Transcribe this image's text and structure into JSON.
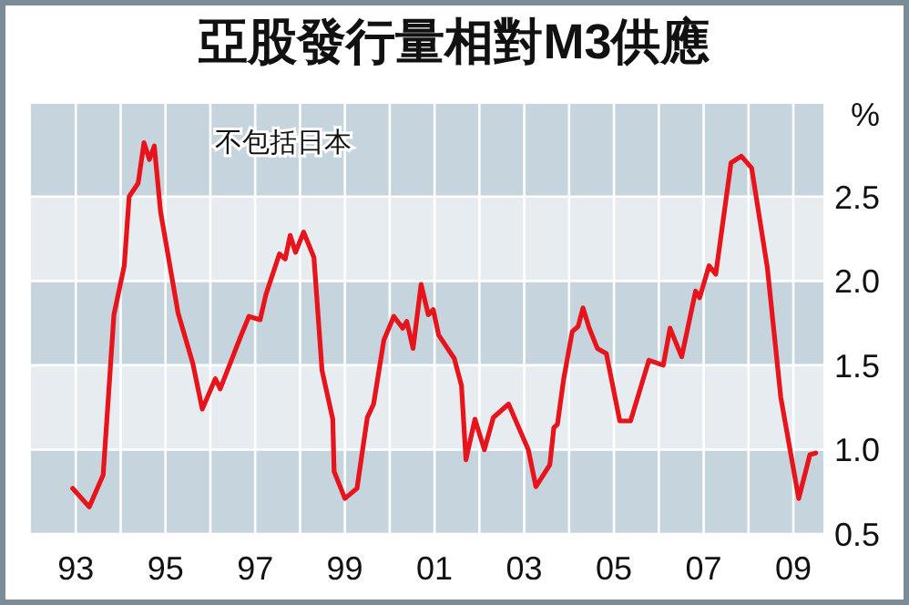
{
  "chart_data": {
    "type": "line",
    "title": "亞股發行量相對M3供應",
    "ylabel": "%",
    "annotations": [
      "不包括日本"
    ],
    "x": [
      1992.93,
      1993.3,
      1993.61,
      1993.85,
      1994.08,
      1994.19,
      1994.39,
      1994.52,
      1994.64,
      1994.75,
      1994.89,
      1995.28,
      1995.61,
      1995.82,
      1996.11,
      1996.22,
      1996.66,
      1996.86,
      1997.11,
      1997.24,
      1997.54,
      1997.67,
      1997.78,
      1997.9,
      1998.08,
      1998.31,
      1998.49,
      1998.73,
      1998.76,
      1999.0,
      1999.27,
      1999.5,
      1999.64,
      1999.87,
      2000.09,
      2000.29,
      2000.38,
      2000.52,
      2000.7,
      2000.86,
      2000.97,
      2001.09,
      2001.44,
      2001.6,
      2001.7,
      2001.9,
      2002.11,
      2002.31,
      2002.65,
      2003.09,
      2003.26,
      2003.57,
      2003.66,
      2003.74,
      2003.88,
      2004.07,
      2004.2,
      2004.31,
      2004.45,
      2004.63,
      2004.83,
      2005.13,
      2005.37,
      2005.78,
      2006.1,
      2006.25,
      2006.51,
      2006.82,
      2006.91,
      2007.12,
      2007.27,
      2007.61,
      2007.84,
      2008.07,
      2008.42,
      2008.72,
      2009.12,
      2009.37,
      2009.5
    ],
    "series": [
      {
        "color": "#e8141b",
        "values": [
          0.77,
          0.66,
          0.85,
          1.8,
          2.09,
          2.5,
          2.58,
          2.82,
          2.72,
          2.8,
          2.41,
          1.81,
          1.51,
          1.24,
          1.42,
          1.36,
          1.66,
          1.79,
          1.77,
          1.92,
          2.16,
          2.13,
          2.27,
          2.17,
          2.29,
          2.14,
          1.47,
          1.18,
          0.87,
          0.71,
          0.77,
          1.19,
          1.27,
          1.65,
          1.79,
          1.72,
          1.76,
          1.6,
          1.98,
          1.8,
          1.83,
          1.68,
          1.54,
          1.38,
          0.94,
          1.18,
          1.0,
          1.19,
          1.27,
          1.0,
          0.78,
          0.91,
          1.13,
          1.15,
          1.42,
          1.7,
          1.73,
          1.84,
          1.72,
          1.6,
          1.57,
          1.17,
          1.17,
          1.53,
          1.5,
          1.72,
          1.55,
          1.94,
          1.9,
          2.09,
          2.04,
          2.7,
          2.74,
          2.67,
          2.08,
          1.31,
          0.71,
          0.97,
          0.98
        ]
      }
    ],
    "xlim": [
      1992,
      2009.67
    ],
    "xticks": [
      {
        "value": 1993,
        "label": "93"
      },
      {
        "value": 1994,
        "label": null
      },
      {
        "value": 1995,
        "label": "95"
      },
      {
        "value": 1996,
        "label": null
      },
      {
        "value": 1997,
        "label": "97"
      },
      {
        "value": 1998,
        "label": null
      },
      {
        "value": 1999,
        "label": "99"
      },
      {
        "value": 2000,
        "label": null
      },
      {
        "value": 2001,
        "label": "01"
      },
      {
        "value": 2002,
        "label": null
      },
      {
        "value": 2003,
        "label": "03"
      },
      {
        "value": 2004,
        "label": null
      },
      {
        "value": 2005,
        "label": "05"
      },
      {
        "value": 2006,
        "label": null
      },
      {
        "value": 2007,
        "label": "07"
      },
      {
        "value": 2008,
        "label": null
      },
      {
        "value": 2009,
        "label": "09"
      }
    ],
    "ylim": [
      0.5,
      3.05
    ],
    "yticks": [
      0.5,
      {
        "value": 1,
        "label": "1.0"
      },
      1.5,
      {
        "value": 2,
        "label": "2.0"
      },
      2.5
    ],
    "grid": true,
    "line_style": "solid",
    "marker": "none"
  }
}
